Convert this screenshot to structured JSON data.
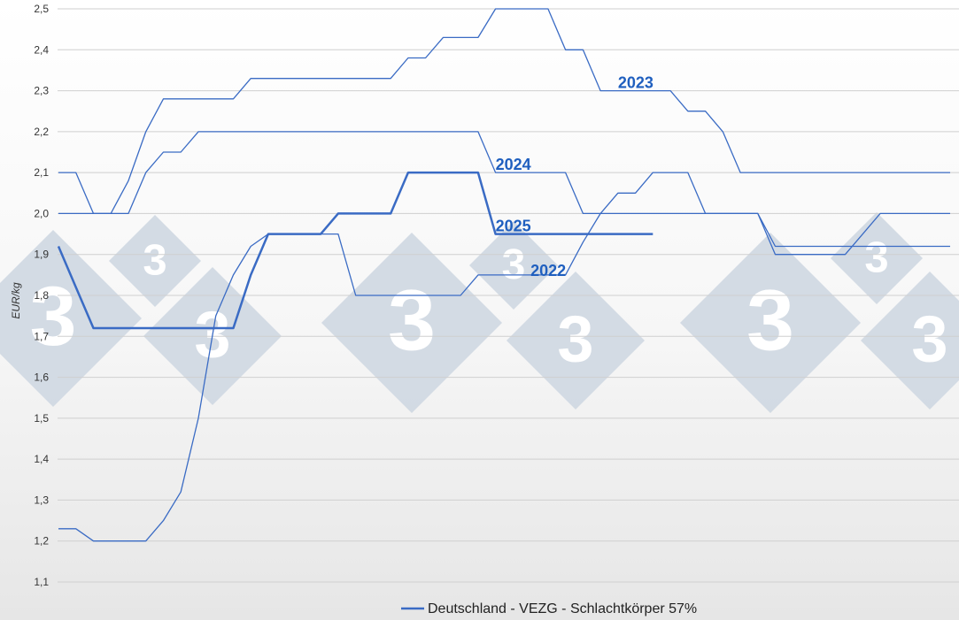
{
  "chart_data": {
    "type": "line",
    "title": "",
    "ylabel": "EUR/kg",
    "xlabel": "",
    "ylim": [
      1.1,
      2.5
    ],
    "yticks": [
      1.1,
      1.2,
      1.3,
      1.4,
      1.5,
      1.6,
      1.7,
      1.8,
      1.9,
      2.0,
      2.1,
      2.2,
      2.3,
      2.4,
      2.5
    ],
    "ytick_labels": [
      "1,1",
      "1,2",
      "1,3",
      "1,4",
      "1,5",
      "1,6",
      "1,7",
      "1,8",
      "1,9",
      "2,0",
      "2,1",
      "2,2",
      "2,3",
      "2,4",
      "2,5"
    ],
    "grid": true,
    "x_axis_labels_shown": false,
    "legend": {
      "placement": "bottom",
      "label": "Deutschland - VEZG - Schlachtkörper 57%",
      "color": "#3a6bc4"
    },
    "watermark_glyph": "3",
    "series": [
      {
        "name": "2022",
        "color": "#3a6bc4",
        "x": [
          1,
          2,
          3,
          4,
          5,
          6,
          7,
          8,
          9,
          10,
          11,
          12,
          13,
          14,
          15,
          16,
          17,
          18,
          19,
          20,
          21,
          22,
          23,
          24,
          25,
          26,
          27,
          28,
          29,
          30,
          31,
          32,
          33,
          34,
          35,
          36,
          37,
          38,
          39,
          40,
          41,
          42,
          43,
          44,
          45,
          46,
          47,
          48,
          49,
          50,
          51,
          52
        ],
        "values": [
          1.23,
          1.23,
          1.2,
          1.2,
          1.2,
          1.2,
          1.25,
          1.32,
          1.5,
          1.75,
          1.85,
          1.92,
          1.95,
          1.95,
          1.95,
          1.95,
          1.95,
          1.8,
          1.8,
          1.8,
          1.8,
          1.8,
          1.8,
          1.8,
          1.85,
          1.85,
          1.85,
          1.85,
          1.85,
          1.85,
          1.93,
          2.0,
          2.05,
          2.05,
          2.1,
          2.1,
          2.1,
          2.0,
          2.0,
          2.0,
          2.0,
          1.9,
          1.9,
          1.9,
          1.9,
          1.9,
          1.95,
          2.0,
          2.0,
          2.0,
          2.0,
          2.0
        ]
      },
      {
        "name": "2023",
        "color": "#3a6bc4",
        "x": [
          1,
          2,
          3,
          4,
          5,
          6,
          7,
          8,
          9,
          10,
          11,
          12,
          13,
          14,
          15,
          16,
          17,
          18,
          19,
          20,
          21,
          22,
          23,
          24,
          25,
          26,
          27,
          28,
          29,
          30,
          31,
          32,
          33,
          34,
          35,
          36,
          37,
          38,
          39,
          40,
          41,
          42,
          43,
          44,
          45,
          46,
          47,
          48,
          49,
          50,
          51,
          52
        ],
        "values": [
          2.1,
          2.1,
          2.0,
          2.0,
          2.08,
          2.2,
          2.28,
          2.28,
          2.28,
          2.28,
          2.28,
          2.33,
          2.33,
          2.33,
          2.33,
          2.33,
          2.33,
          2.33,
          2.33,
          2.33,
          2.38,
          2.38,
          2.43,
          2.43,
          2.43,
          2.5,
          2.5,
          2.5,
          2.5,
          2.4,
          2.4,
          2.3,
          2.3,
          2.3,
          2.3,
          2.3,
          2.25,
          2.25,
          2.2,
          2.1,
          2.1,
          2.1,
          2.1,
          2.1,
          2.1,
          2.1,
          2.1,
          2.1,
          2.1,
          2.1,
          2.1,
          2.1
        ]
      },
      {
        "name": "2024",
        "color": "#3a6bc4",
        "x": [
          1,
          2,
          3,
          4,
          5,
          6,
          7,
          8,
          9,
          10,
          11,
          12,
          13,
          14,
          15,
          16,
          17,
          18,
          19,
          20,
          21,
          22,
          23,
          24,
          25,
          26,
          27,
          28,
          29,
          30,
          31,
          32,
          33,
          34,
          35,
          36,
          37,
          38,
          39,
          40,
          41,
          42,
          43,
          44,
          45,
          46,
          47,
          48,
          49,
          50,
          51,
          52
        ],
        "values": [
          2.0,
          2.0,
          2.0,
          2.0,
          2.0,
          2.1,
          2.15,
          2.15,
          2.2,
          2.2,
          2.2,
          2.2,
          2.2,
          2.2,
          2.2,
          2.2,
          2.2,
          2.2,
          2.2,
          2.2,
          2.2,
          2.2,
          2.2,
          2.2,
          2.2,
          2.1,
          2.1,
          2.1,
          2.1,
          2.1,
          2.0,
          2.0,
          2.0,
          2.0,
          2.0,
          2.0,
          2.0,
          2.0,
          2.0,
          2.0,
          2.0,
          1.92,
          1.92,
          1.92,
          1.92,
          1.92,
          1.92,
          1.92,
          1.92,
          1.92,
          1.92,
          1.92
        ]
      },
      {
        "name": "2025",
        "color": "#3a6bc4",
        "x": [
          1,
          2,
          3,
          4,
          5,
          6,
          7,
          8,
          9,
          10,
          11,
          12,
          13,
          14,
          15,
          16,
          17,
          18,
          19,
          20,
          21,
          22,
          23,
          24,
          25,
          26,
          27,
          28,
          29,
          30,
          31,
          32,
          33,
          34,
          35
        ],
        "values": [
          1.92,
          1.82,
          1.72,
          1.72,
          1.72,
          1.72,
          1.72,
          1.72,
          1.72,
          1.72,
          1.72,
          1.85,
          1.95,
          1.95,
          1.95,
          1.95,
          2.0,
          2.0,
          2.0,
          2.0,
          2.1,
          2.1,
          2.1,
          2.1,
          2.1,
          1.95,
          1.95,
          1.95,
          1.95,
          1.95,
          1.95,
          1.95,
          1.95,
          1.95,
          1.95
        ]
      }
    ],
    "annotations": [
      {
        "text": "2023",
        "x": 33,
        "y": 2.32
      },
      {
        "text": "2024",
        "x": 26,
        "y": 2.12
      },
      {
        "text": "2025",
        "x": 26,
        "y": 1.97
      },
      {
        "text": "2022",
        "x": 28,
        "y": 1.86
      }
    ]
  }
}
